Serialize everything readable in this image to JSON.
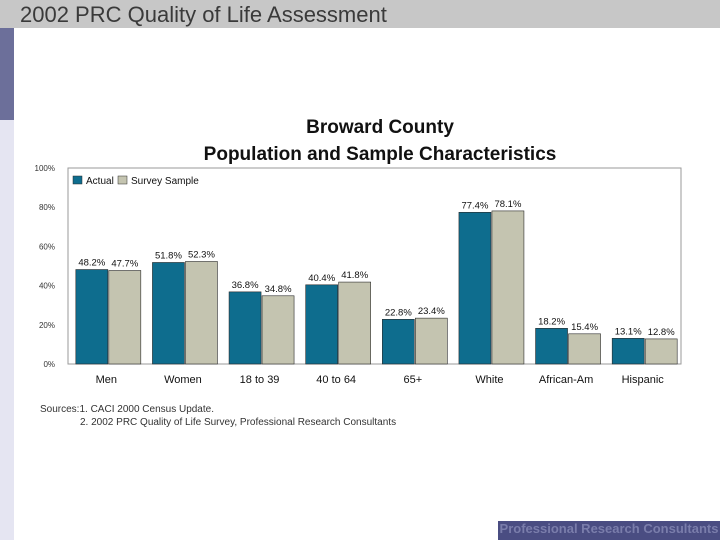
{
  "slide": {
    "title": "2002 PRC Quality of Life Assessment",
    "footer": "Professional Research Consultants"
  },
  "sources": {
    "label": "Sources:",
    "line1": "1. CACI 2000 Census Update.",
    "line2": "2. 2002 PRC Quality of Life Survey, Professional Research Consultants"
  },
  "colors": {
    "actual": "#0e6d8e",
    "survey": "#c4c4b0",
    "plot_bg": "#ffffff"
  },
  "chart_data": {
    "type": "bar",
    "title_line1": "Broward County",
    "title_line2": "Population and Sample Characteristics",
    "categories": [
      "Men",
      "Women",
      "18 to 39",
      "40 to 64",
      "65+",
      "White",
      "African-Am",
      "Hispanic"
    ],
    "series": [
      {
        "name": "Actual",
        "values": [
          48.2,
          51.8,
          36.8,
          40.4,
          22.8,
          77.4,
          18.2,
          13.1
        ],
        "labels": [
          "48.2%",
          "51.8%",
          "36.8%",
          "40.4%",
          "22.8%",
          "77.4%",
          "18.2%",
          "13.1%"
        ]
      },
      {
        "name": "Survey Sample",
        "values": [
          47.7,
          52.3,
          34.8,
          41.8,
          23.4,
          78.1,
          15.4,
          12.8
        ],
        "labels": [
          "47.7%",
          "52.3%",
          "34.8%",
          "41.8%",
          "23.4%",
          "78.1%",
          "15.4%",
          "12.8%"
        ]
      }
    ],
    "ylim": [
      0,
      100
    ],
    "yticks": [
      0,
      20,
      40,
      60,
      80,
      100
    ],
    "ytick_labels": [
      "0%",
      "20%",
      "40%",
      "60%",
      "80%",
      "100%"
    ],
    "legend_position": "top-left",
    "grid": false
  }
}
